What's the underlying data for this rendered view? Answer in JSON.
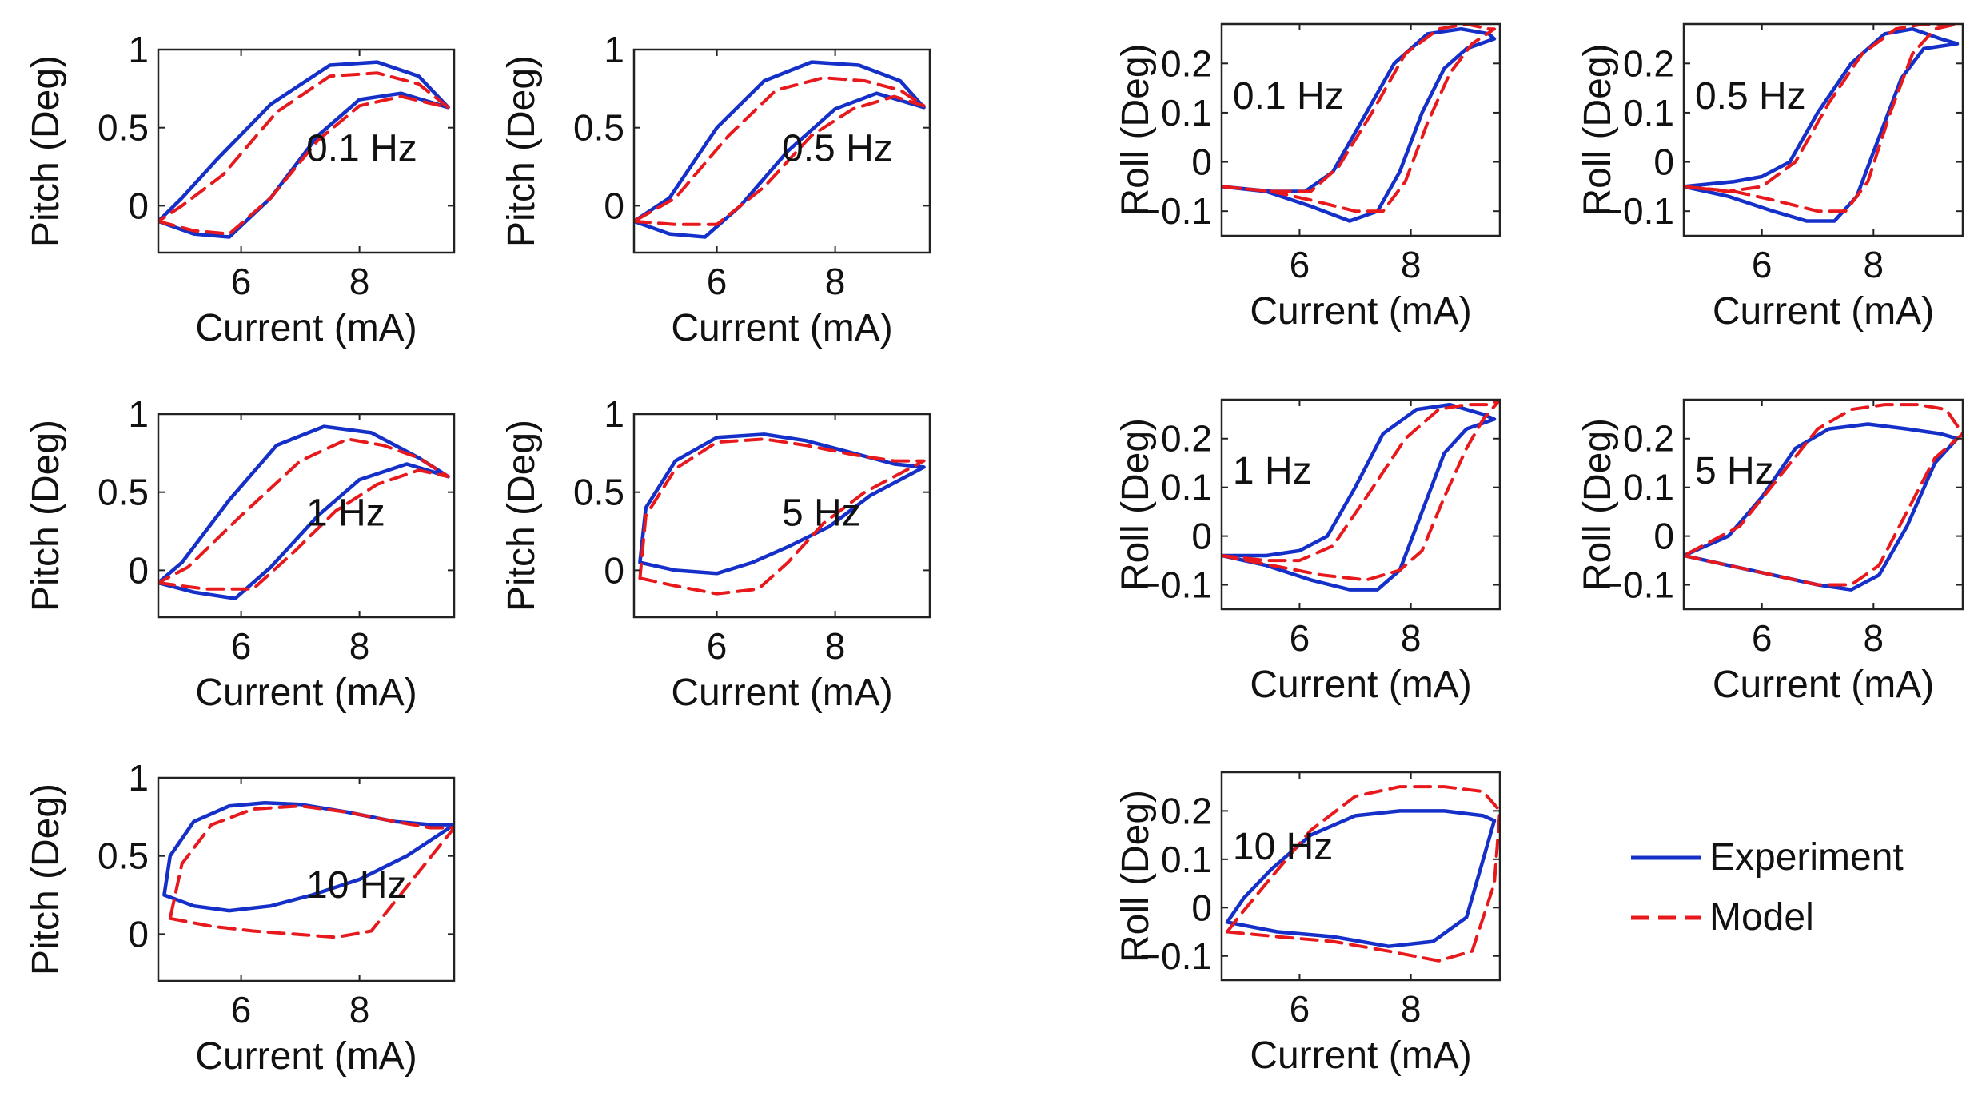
{
  "colors": {
    "experiment": "#1530c8",
    "model": "#e8191c",
    "axis": "#222222",
    "text": "#111111"
  },
  "legend": {
    "items": [
      {
        "name": "Experiment",
        "style": "solid",
        "color": "#1530c8"
      },
      {
        "name": "Model",
        "style": "dashed",
        "color": "#e8191c"
      }
    ]
  },
  "chart_data": [
    {
      "type": "line",
      "title": "Pitch 0.1 Hz",
      "annotation": "0.1 Hz",
      "xlabel": "Current (mA)",
      "ylabel": "Pitch (Deg)",
      "xlim": [
        4.6,
        9.6
      ],
      "ylim": [
        -0.3,
        1.0
      ],
      "xticks": [
        6,
        8
      ],
      "yticks": [
        0,
        0.5,
        1
      ],
      "yticklabels": [
        "0",
        "0.5",
        "1"
      ],
      "series": [
        {
          "name": "Experiment",
          "x": [
            4.6,
            5.2,
            5.8,
            6.5,
            7.3,
            8.0,
            8.7,
            9.5,
            9.0,
            8.3,
            7.5,
            6.5,
            5.6,
            5.0,
            4.6
          ],
          "y": [
            -0.1,
            -0.18,
            -0.2,
            0.05,
            0.45,
            0.68,
            0.72,
            0.63,
            0.83,
            0.92,
            0.9,
            0.65,
            0.3,
            0.05,
            -0.1
          ]
        },
        {
          "name": "Model",
          "x": [
            4.6,
            5.2,
            5.8,
            6.5,
            7.3,
            8.0,
            8.7,
            9.5,
            9.0,
            8.3,
            7.5,
            6.6,
            5.7,
            5.0,
            4.6
          ],
          "y": [
            -0.1,
            -0.16,
            -0.18,
            0.05,
            0.42,
            0.64,
            0.7,
            0.63,
            0.78,
            0.85,
            0.83,
            0.6,
            0.2,
            0.0,
            -0.1
          ]
        }
      ]
    },
    {
      "type": "line",
      "title": "Pitch 0.5 Hz",
      "annotation": "0.5 Hz",
      "xlabel": "Current (mA)",
      "ylabel": "Pitch (Deg)",
      "xlim": [
        4.6,
        9.6
      ],
      "ylim": [
        -0.3,
        1.0
      ],
      "xticks": [
        6,
        8
      ],
      "yticks": [
        0,
        0.5,
        1
      ],
      "yticklabels": [
        "0",
        "0.5",
        "1"
      ],
      "series": [
        {
          "name": "Experiment",
          "x": [
            4.6,
            5.2,
            5.8,
            6.4,
            7.2,
            8.0,
            8.7,
            9.5,
            9.1,
            8.4,
            7.6,
            6.8,
            6.0,
            5.2,
            4.6
          ],
          "y": [
            -0.1,
            -0.18,
            -0.2,
            0.0,
            0.35,
            0.62,
            0.72,
            0.63,
            0.8,
            0.9,
            0.92,
            0.8,
            0.5,
            0.05,
            -0.1
          ]
        },
        {
          "name": "Model",
          "x": [
            4.6,
            5.3,
            6.0,
            6.8,
            7.6,
            8.3,
            9.0,
            9.5,
            9.1,
            8.5,
            7.8,
            7.0,
            6.2,
            5.3,
            4.6
          ],
          "y": [
            -0.1,
            -0.12,
            -0.12,
            0.12,
            0.45,
            0.62,
            0.7,
            0.64,
            0.74,
            0.8,
            0.82,
            0.74,
            0.45,
            0.05,
            -0.1
          ]
        }
      ]
    },
    {
      "type": "line",
      "title": "Pitch 1 Hz",
      "annotation": "1 Hz",
      "xlabel": "Current (mA)",
      "ylabel": "Pitch (Deg)",
      "xlim": [
        4.6,
        9.6
      ],
      "ylim": [
        -0.3,
        1.0
      ],
      "xticks": [
        6,
        8
      ],
      "yticks": [
        0,
        0.5,
        1
      ],
      "yticklabels": [
        "0",
        "0.5",
        "1"
      ],
      "series": [
        {
          "name": "Experiment",
          "x": [
            4.6,
            5.2,
            5.9,
            6.5,
            7.3,
            8.0,
            8.8,
            9.5,
            9.0,
            8.2,
            7.4,
            6.6,
            5.8,
            5.0,
            4.6
          ],
          "y": [
            -0.08,
            -0.14,
            -0.18,
            0.02,
            0.35,
            0.58,
            0.68,
            0.6,
            0.72,
            0.88,
            0.92,
            0.8,
            0.45,
            0.05,
            -0.08
          ]
        },
        {
          "name": "Model",
          "x": [
            4.6,
            5.4,
            6.2,
            6.9,
            7.6,
            8.3,
            9.0,
            9.5,
            9.0,
            8.4,
            7.8,
            7.0,
            6.0,
            5.1,
            4.6
          ],
          "y": [
            -0.08,
            -0.12,
            -0.12,
            0.12,
            0.38,
            0.55,
            0.64,
            0.6,
            0.72,
            0.8,
            0.84,
            0.7,
            0.35,
            0.02,
            -0.08
          ]
        }
      ]
    },
    {
      "type": "line",
      "title": "Pitch 5 Hz",
      "annotation": "5 Hz",
      "xlabel": "Current (mA)",
      "ylabel": "Pitch (Deg)",
      "xlim": [
        4.6,
        9.6
      ],
      "ylim": [
        -0.3,
        1.0
      ],
      "xticks": [
        6,
        8
      ],
      "yticks": [
        0,
        0.5,
        1
      ],
      "yticklabels": [
        "0",
        "0.5",
        "1"
      ],
      "series": [
        {
          "name": "Experiment",
          "x": [
            4.7,
            5.3,
            6.0,
            6.6,
            7.2,
            7.9,
            8.6,
            9.5,
            9.0,
            8.3,
            7.5,
            6.8,
            6.0,
            5.3,
            4.8,
            4.7
          ],
          "y": [
            0.05,
            0.0,
            -0.02,
            0.05,
            0.15,
            0.28,
            0.48,
            0.66,
            0.68,
            0.75,
            0.83,
            0.87,
            0.85,
            0.7,
            0.4,
            0.05
          ]
        },
        {
          "name": "Model",
          "x": [
            4.7,
            5.3,
            6.0,
            6.7,
            7.2,
            7.8,
            8.5,
            9.5,
            9.0,
            8.3,
            7.5,
            6.8,
            6.0,
            5.3,
            4.8,
            4.7
          ],
          "y": [
            -0.05,
            -0.1,
            -0.15,
            -0.12,
            0.05,
            0.3,
            0.5,
            0.7,
            0.7,
            0.74,
            0.8,
            0.84,
            0.82,
            0.65,
            0.35,
            -0.05
          ]
        }
      ]
    },
    {
      "type": "line",
      "title": "Pitch 10 Hz",
      "annotation": "10 Hz",
      "xlabel": "Current (mA)",
      "ylabel": "Pitch (Deg)",
      "xlim": [
        4.6,
        9.6
      ],
      "ylim": [
        -0.3,
        1.0
      ],
      "xticks": [
        6,
        8
      ],
      "yticks": [
        0,
        0.5,
        1
      ],
      "yticklabels": [
        "0",
        "0.5",
        "1"
      ],
      "series": [
        {
          "name": "Experiment",
          "x": [
            4.7,
            5.2,
            5.8,
            6.5,
            7.2,
            8.0,
            8.8,
            9.6,
            9.2,
            8.6,
            7.8,
            7.0,
            6.4,
            5.8,
            5.2,
            4.8,
            4.7
          ],
          "y": [
            0.25,
            0.18,
            0.15,
            0.18,
            0.25,
            0.35,
            0.5,
            0.7,
            0.7,
            0.72,
            0.78,
            0.83,
            0.84,
            0.82,
            0.72,
            0.5,
            0.25
          ]
        },
        {
          "name": "Model",
          "x": [
            4.8,
            5.5,
            6.2,
            6.9,
            7.6,
            8.2,
            8.9,
            9.6,
            9.2,
            8.6,
            7.8,
            7.0,
            6.2,
            5.5,
            5.0,
            4.8
          ],
          "y": [
            0.1,
            0.05,
            0.02,
            0.0,
            -0.02,
            0.02,
            0.35,
            0.68,
            0.68,
            0.72,
            0.78,
            0.82,
            0.8,
            0.7,
            0.45,
            0.1
          ]
        }
      ]
    },
    {
      "type": "line",
      "title": "Roll 0.1 Hz",
      "annotation": "0.1 Hz",
      "xlabel": "Current (mA)",
      "ylabel": "Roll (Deg)",
      "xlim": [
        4.6,
        9.6
      ],
      "ylim": [
        -0.15,
        0.28
      ],
      "xticks": [
        6,
        8
      ],
      "yticks": [
        -0.1,
        0,
        0.1,
        0.2
      ],
      "yticklabels": [
        "−0.1",
        "0",
        "0.1",
        "0.2"
      ],
      "series": [
        {
          "name": "Experiment",
          "x": [
            4.6,
            5.4,
            6.2,
            6.9,
            7.4,
            7.8,
            8.2,
            8.6,
            9.0,
            9.5,
            9.4,
            8.9,
            8.3,
            7.7,
            7.1,
            6.6,
            6.1,
            5.5,
            4.6
          ],
          "y": [
            -0.05,
            -0.06,
            -0.09,
            -0.12,
            -0.1,
            -0.02,
            0.1,
            0.19,
            0.23,
            0.25,
            0.26,
            0.27,
            0.26,
            0.2,
            0.08,
            -0.02,
            -0.06,
            -0.06,
            -0.05
          ]
        },
        {
          "name": "Model",
          "x": [
            4.6,
            5.5,
            6.3,
            7.0,
            7.5,
            7.9,
            8.3,
            8.7,
            9.1,
            9.5,
            9.4,
            9.0,
            8.5,
            7.9,
            7.3,
            6.7,
            6.2,
            5.5,
            4.6
          ],
          "y": [
            -0.05,
            -0.06,
            -0.08,
            -0.1,
            -0.1,
            -0.04,
            0.08,
            0.18,
            0.24,
            0.27,
            0.27,
            0.28,
            0.27,
            0.22,
            0.1,
            -0.01,
            -0.06,
            -0.06,
            -0.05
          ]
        }
      ]
    },
    {
      "type": "line",
      "title": "Roll 0.5 Hz",
      "annotation": "0.5 Hz",
      "xlabel": "Current (mA)",
      "ylabel": "Roll (Deg)",
      "xlim": [
        4.6,
        9.6
      ],
      "ylim": [
        -0.15,
        0.28
      ],
      "xticks": [
        6,
        8
      ],
      "yticks": [
        -0.1,
        0,
        0.1,
        0.2
      ],
      "yticklabels": [
        "−0.1",
        "0",
        "0.1",
        "0.2"
      ],
      "series": [
        {
          "name": "Experiment",
          "x": [
            4.6,
            5.4,
            6.2,
            6.8,
            7.3,
            7.7,
            8.1,
            8.5,
            8.9,
            9.5,
            9.2,
            8.7,
            8.2,
            7.6,
            7.0,
            6.5,
            6.0,
            5.5,
            4.6
          ],
          "y": [
            -0.05,
            -0.07,
            -0.1,
            -0.12,
            -0.12,
            -0.07,
            0.05,
            0.17,
            0.23,
            0.24,
            0.25,
            0.27,
            0.26,
            0.2,
            0.1,
            0.0,
            -0.03,
            -0.04,
            -0.05
          ]
        },
        {
          "name": "Model",
          "x": [
            4.6,
            5.5,
            6.3,
            7.0,
            7.5,
            7.9,
            8.3,
            8.7,
            9.1,
            9.5,
            9.3,
            8.9,
            8.4,
            7.8,
            7.2,
            6.6,
            6.0,
            5.4,
            4.6
          ],
          "y": [
            -0.05,
            -0.06,
            -0.08,
            -0.1,
            -0.1,
            -0.04,
            0.1,
            0.22,
            0.27,
            0.28,
            0.28,
            0.28,
            0.27,
            0.22,
            0.12,
            0.0,
            -0.05,
            -0.06,
            -0.05
          ]
        }
      ]
    },
    {
      "type": "line",
      "title": "Roll 1 Hz",
      "annotation": "1 Hz",
      "xlabel": "Current (mA)",
      "ylabel": "Roll (Deg)",
      "xlim": [
        4.6,
        9.6
      ],
      "ylim": [
        -0.15,
        0.28
      ],
      "xticks": [
        6,
        8
      ],
      "yticks": [
        -0.1,
        0,
        0.1,
        0.2
      ],
      "yticklabels": [
        "−0.1",
        "0",
        "0.1",
        "0.2"
      ],
      "series": [
        {
          "name": "Experiment",
          "x": [
            4.6,
            5.4,
            6.2,
            6.9,
            7.4,
            7.8,
            8.2,
            8.6,
            9.0,
            9.5,
            9.3,
            8.7,
            8.1,
            7.5,
            7.0,
            6.5,
            6.0,
            5.4,
            4.6
          ],
          "y": [
            -0.04,
            -0.06,
            -0.09,
            -0.11,
            -0.11,
            -0.07,
            0.05,
            0.17,
            0.22,
            0.24,
            0.25,
            0.27,
            0.26,
            0.21,
            0.1,
            0.0,
            -0.03,
            -0.04,
            -0.04
          ]
        },
        {
          "name": "Model",
          "x": [
            4.6,
            5.5,
            6.4,
            7.2,
            7.8,
            8.2,
            8.6,
            9.0,
            9.3,
            9.6,
            9.4,
            9.0,
            8.5,
            7.9,
            7.2,
            6.6,
            6.0,
            5.4,
            4.6
          ],
          "y": [
            -0.04,
            -0.06,
            -0.08,
            -0.09,
            -0.07,
            -0.03,
            0.08,
            0.18,
            0.24,
            0.28,
            0.27,
            0.27,
            0.26,
            0.2,
            0.08,
            -0.02,
            -0.05,
            -0.05,
            -0.04
          ]
        }
      ]
    },
    {
      "type": "line",
      "title": "Roll 5 Hz",
      "annotation": "5 Hz",
      "xlabel": "Current (mA)",
      "ylabel": "Roll (Deg)",
      "xlim": [
        4.6,
        9.6
      ],
      "ylim": [
        -0.15,
        0.28
      ],
      "xticks": [
        6,
        8
      ],
      "yticks": [
        -0.1,
        0,
        0.1,
        0.2
      ],
      "yticklabels": [
        "−0.1",
        "0",
        "0.1",
        "0.2"
      ],
      "series": [
        {
          "name": "Experiment",
          "x": [
            4.6,
            5.4,
            6.2,
            7.0,
            7.6,
            8.1,
            8.6,
            9.1,
            9.5,
            9.2,
            8.6,
            7.9,
            7.2,
            6.6,
            6.0,
            5.4,
            4.6
          ],
          "y": [
            -0.04,
            -0.06,
            -0.08,
            -0.1,
            -0.11,
            -0.08,
            0.02,
            0.15,
            0.2,
            0.21,
            0.22,
            0.23,
            0.22,
            0.18,
            0.08,
            0.0,
            -0.04
          ]
        },
        {
          "name": "Model",
          "x": [
            4.6,
            5.4,
            6.2,
            7.0,
            7.6,
            8.1,
            8.6,
            9.1,
            9.6,
            9.3,
            8.8,
            8.2,
            7.6,
            7.0,
            6.3,
            5.6,
            4.6
          ],
          "y": [
            -0.04,
            -0.06,
            -0.08,
            -0.1,
            -0.1,
            -0.06,
            0.05,
            0.16,
            0.21,
            0.26,
            0.27,
            0.27,
            0.26,
            0.22,
            0.12,
            0.02,
            -0.04
          ]
        }
      ]
    },
    {
      "type": "line",
      "title": "Roll 10 Hz",
      "annotation": "10 Hz",
      "xlabel": "Current (mA)",
      "ylabel": "Roll (Deg)",
      "xlim": [
        4.6,
        9.6
      ],
      "ylim": [
        -0.15,
        0.28
      ],
      "xticks": [
        6,
        8
      ],
      "yticks": [
        -0.1,
        0,
        0.1,
        0.2
      ],
      "yticklabels": [
        "−0.1",
        "0",
        "0.1",
        "0.2"
      ],
      "series": [
        {
          "name": "Experiment",
          "x": [
            4.7,
            5.6,
            6.6,
            7.6,
            8.4,
            9.0,
            9.5,
            9.3,
            8.6,
            7.8,
            7.0,
            6.2,
            5.5,
            5.0,
            4.7
          ],
          "y": [
            -0.03,
            -0.05,
            -0.06,
            -0.08,
            -0.07,
            -0.02,
            0.18,
            0.19,
            0.2,
            0.2,
            0.19,
            0.15,
            0.08,
            0.02,
            -0.03
          ]
        },
        {
          "name": "Model",
          "x": [
            4.7,
            5.6,
            6.6,
            7.6,
            8.5,
            9.1,
            9.5,
            9.6,
            9.3,
            8.6,
            7.8,
            7.0,
            6.2,
            5.4,
            4.9,
            4.7
          ],
          "y": [
            -0.05,
            -0.06,
            -0.07,
            -0.09,
            -0.11,
            -0.09,
            0.05,
            0.2,
            0.24,
            0.25,
            0.25,
            0.23,
            0.16,
            0.05,
            -0.02,
            -0.05
          ]
        }
      ]
    }
  ]
}
